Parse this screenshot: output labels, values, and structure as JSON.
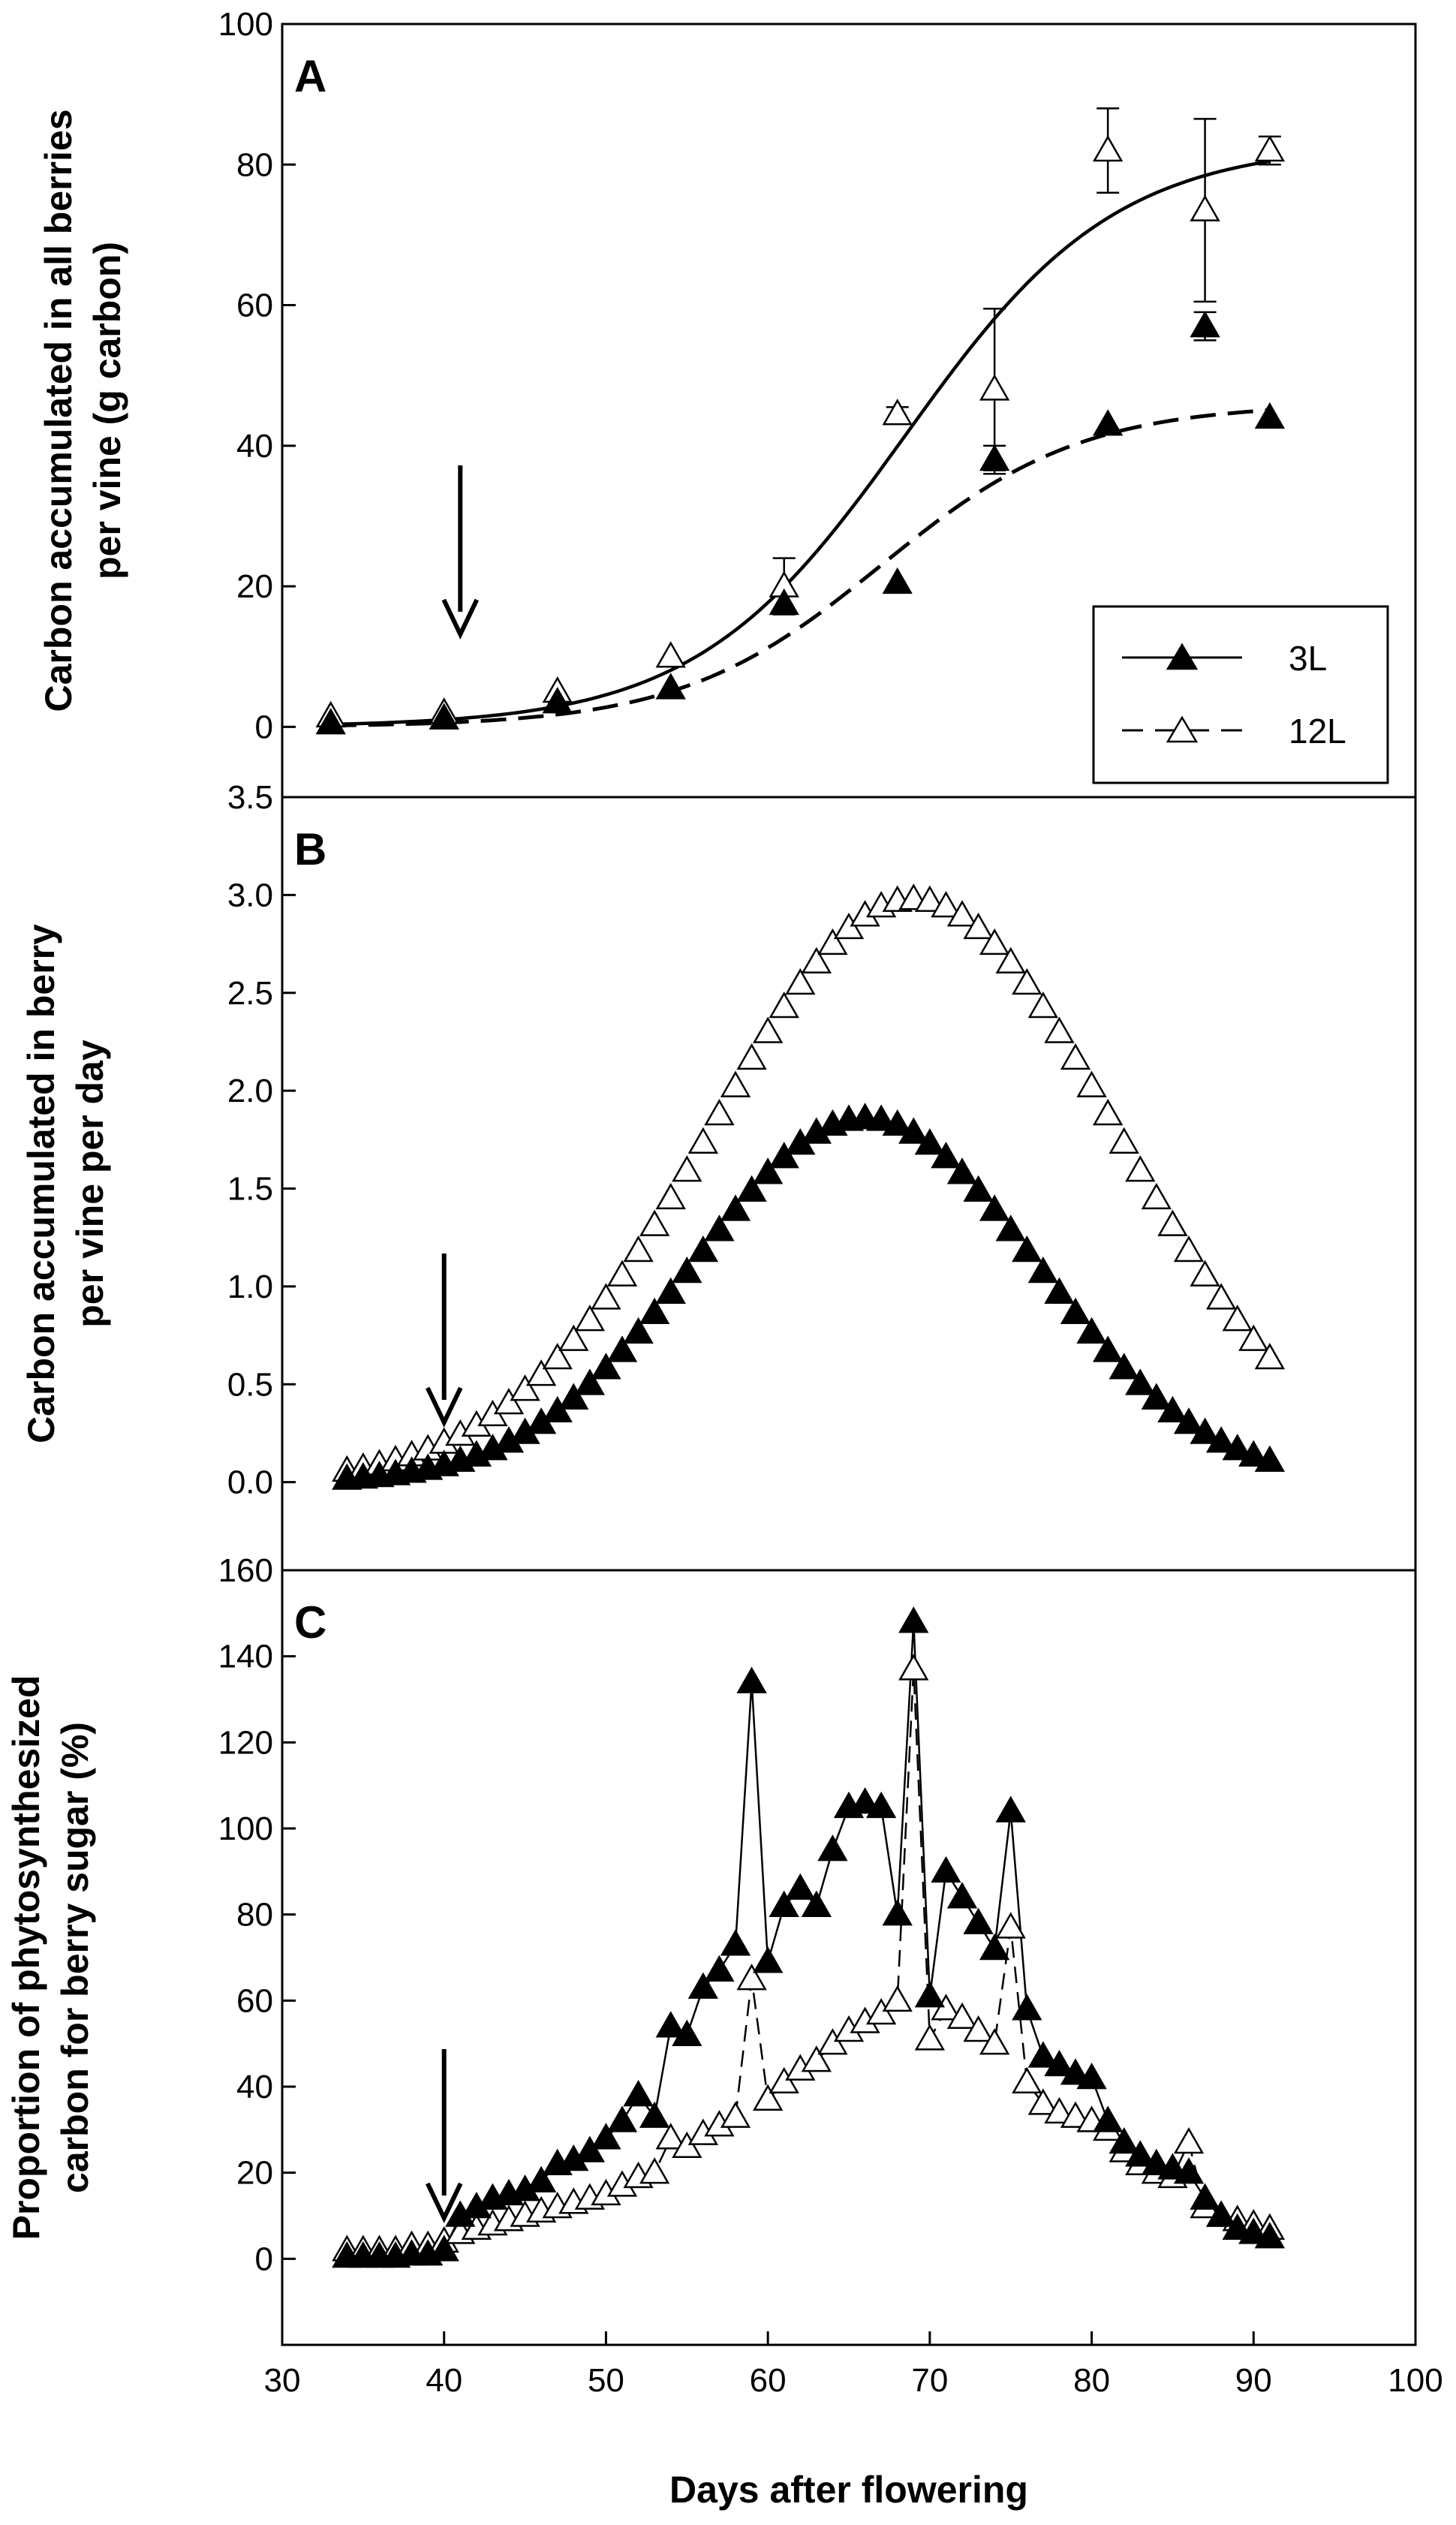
{
  "chart_data": [
    {
      "panel": "A",
      "type": "line+scatter",
      "ylabel_line1": "Carbon accumulated in all berries",
      "ylabel_line2": "per vine (g carbon)",
      "ylim": [
        -10,
        100
      ],
      "yticks": [
        0,
        20,
        40,
        60,
        80,
        100
      ],
      "legend": {
        "position": "bottom-right",
        "entries": [
          {
            "label": "3L",
            "marker": "filled-triangle",
            "line": "solid"
          },
          {
            "label": "12L",
            "marker": "open-triangle",
            "line": "dashed"
          }
        ]
      },
      "series": [
        {
          "name": "3L",
          "marker": "filled",
          "x": [
            33,
            40,
            47,
            54,
            61,
            68,
            74,
            81,
            87,
            91
          ],
          "y": [
            0.5,
            1.2,
            3.5,
            5.5,
            17.5,
            20.5,
            38,
            43,
            57,
            44
          ],
          "err": [
            0,
            0,
            0,
            0,
            1.5,
            0,
            2,
            0,
            2,
            0
          ]
        },
        {
          "name": "12L",
          "marker": "open",
          "x": [
            33,
            40,
            47,
            54,
            61,
            68,
            74,
            81,
            87,
            91
          ],
          "y": [
            1.5,
            2,
            5,
            10,
            20,
            44.5,
            48,
            82,
            73.5,
            82
          ],
          "err": [
            0,
            0,
            0,
            0,
            4,
            1,
            11.5,
            6,
            13,
            2
          ]
        }
      ],
      "fits": [
        {
          "name": "fit-solid",
          "style": "solid",
          "asym": 83,
          "mid": 68.5,
          "scale": 6.5
        },
        {
          "name": "fit-dashed",
          "style": "dashed",
          "asym": 46,
          "mid": 67,
          "scale": 6.2
        }
      ],
      "arrow_day": 41
    },
    {
      "panel": "B",
      "type": "scatter",
      "ylabel_line1": "Carbon accumulated in berry",
      "ylabel_line2": "per vine per day",
      "ylim": [
        -0.45,
        3.5
      ],
      "yticks": [
        0.0,
        0.5,
        1.0,
        1.5,
        2.0,
        2.5,
        3.0,
        3.5
      ],
      "series": [
        {
          "name": "3L",
          "marker": "filled",
          "peak": 1.86,
          "peak_day": 66,
          "width": 10.5,
          "x_start": 34,
          "x_end": 91
        },
        {
          "name": "12L",
          "marker": "open",
          "peak": 2.98,
          "peak_day": 69,
          "width": 12.5,
          "x_start": 34,
          "x_end": 91
        }
      ],
      "arrow_day": 40
    },
    {
      "panel": "C",
      "type": "line+scatter",
      "ylabel_line1": "Proportion of phytosynthesized",
      "ylabel_line2": "carbon for berry sugar (%)",
      "ylim": [
        -20,
        160
      ],
      "yticks": [
        0,
        20,
        40,
        60,
        80,
        100,
        120,
        140,
        160
      ],
      "series": [
        {
          "name": "3L",
          "marker": "filled",
          "line": "solid",
          "x": [
            34,
            35,
            36,
            37,
            38,
            39,
            40,
            41,
            42,
            43,
            44,
            45,
            46,
            47,
            48,
            49,
            50,
            51,
            52,
            53,
            54,
            55,
            56,
            57,
            58,
            59,
            60,
            61,
            62,
            63,
            64,
            65,
            66,
            67,
            68,
            69,
            70,
            71,
            72,
            73,
            74,
            75,
            76,
            77,
            78,
            79,
            80,
            81,
            82,
            83,
            84,
            85,
            86,
            87,
            88,
            89,
            90,
            91
          ],
          "y": [
            0.5,
            0.5,
            0.5,
            0.5,
            1,
            1,
            2,
            10,
            12,
            14,
            15,
            16,
            18,
            22,
            23,
            25,
            28,
            32,
            38,
            33,
            54,
            52,
            63,
            67,
            73,
            134,
            69,
            82,
            86,
            82,
            95,
            105,
            106,
            105,
            80,
            148,
            61,
            90,
            84,
            78,
            72,
            104,
            58,
            47,
            45,
            43,
            42,
            32,
            27,
            24,
            22,
            21,
            20,
            14,
            10,
            7,
            6,
            5
          ]
        },
        {
          "name": "12L",
          "marker": "open",
          "line": "dashed",
          "x": [
            34,
            35,
            36,
            37,
            38,
            39,
            40,
            41,
            42,
            43,
            44,
            45,
            46,
            47,
            48,
            49,
            50,
            51,
            52,
            53,
            54,
            55,
            56,
            57,
            58,
            59,
            60,
            61,
            62,
            63,
            64,
            65,
            66,
            67,
            68,
            69,
            70,
            71,
            72,
            73,
            74,
            75,
            76,
            77,
            78,
            79,
            80,
            81,
            82,
            83,
            84,
            85,
            86,
            87,
            88,
            89,
            90,
            91
          ],
          "y": [
            2,
            2,
            2,
            2,
            3,
            3,
            4,
            6,
            7,
            8,
            9,
            10,
            11,
            12,
            13,
            14,
            15,
            17,
            19,
            20,
            28,
            26,
            29,
            31,
            33,
            65,
            37,
            41,
            44,
            46,
            50,
            53,
            55,
            57,
            60,
            137,
            51,
            58,
            56,
            53,
            50,
            77,
            41,
            36,
            34,
            33,
            32,
            30,
            25,
            22,
            20,
            19,
            27,
            12,
            10,
            9,
            8,
            7
          ]
        }
      ],
      "arrow_day": 40
    }
  ],
  "xaxis": {
    "label": "Days after flowering",
    "xlim": [
      30,
      100
    ],
    "xticks": [
      30,
      40,
      50,
      60,
      70,
      80,
      90,
      100
    ]
  }
}
